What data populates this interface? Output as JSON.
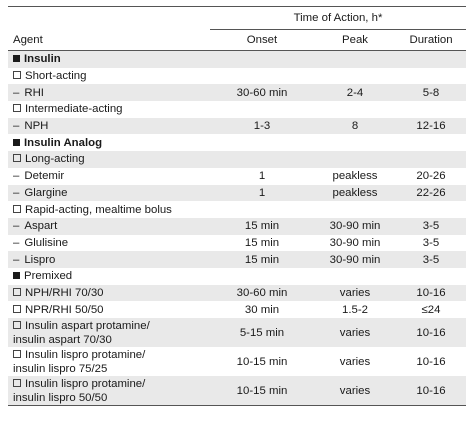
{
  "header": {
    "agent_label": "Agent",
    "time_of_action_label": "Time of Action, h*",
    "onset_label": "Onset",
    "peak_label": "Peak",
    "duration_label": "Duration"
  },
  "rows": [
    {
      "kind": "category",
      "agent": "Insulin",
      "onset": "",
      "peak": "",
      "duration": ""
    },
    {
      "kind": "subcategory",
      "agent": "Short-acting",
      "onset": "",
      "peak": "",
      "duration": ""
    },
    {
      "kind": "item",
      "agent": "RHI",
      "onset": "30-60 min",
      "peak": "2-4",
      "duration": "5-8"
    },
    {
      "kind": "subcategory",
      "agent": "Intermediate-acting",
      "onset": "",
      "peak": "",
      "duration": ""
    },
    {
      "kind": "item",
      "agent": "NPH",
      "onset": "1-3",
      "peak": "8",
      "duration": "12-16"
    },
    {
      "kind": "category",
      "agent": "Insulin Analog",
      "onset": "",
      "peak": "",
      "duration": ""
    },
    {
      "kind": "subcategory",
      "agent": "Long-acting",
      "onset": "",
      "peak": "",
      "duration": ""
    },
    {
      "kind": "item",
      "agent": "Detemir",
      "onset": "1",
      "peak": "peakless",
      "duration": "20-26"
    },
    {
      "kind": "item",
      "agent": "Glargine",
      "onset": "1",
      "peak": "peakless",
      "duration": "22-26"
    },
    {
      "kind": "subcategory",
      "agent": "Rapid-acting, mealtime bolus",
      "onset": "",
      "peak": "",
      "duration": ""
    },
    {
      "kind": "item",
      "agent": "Aspart",
      "onset": "15 min",
      "peak": "30-90 min",
      "duration": "3-5"
    },
    {
      "kind": "item",
      "agent": "Glulisine",
      "onset": "15 min",
      "peak": "30-90 min",
      "duration": "3-5"
    },
    {
      "kind": "item",
      "agent": "Lispro",
      "onset": "15 min",
      "peak": "30-90 min",
      "duration": "3-5"
    },
    {
      "kind": "premixed",
      "agent": "Premixed",
      "onset": "",
      "peak": "",
      "duration": ""
    },
    {
      "kind": "subitem",
      "agent": "NPH/RHI 70/30",
      "onset": "30-60 min",
      "peak": "varies",
      "duration": "10-16"
    },
    {
      "kind": "subitem",
      "agent": "NPR/RHI 50/50",
      "onset": "30 min",
      "peak": "1.5-2",
      "duration": "≤24"
    },
    {
      "kind": "subitem2",
      "agent": "Insulin aspart protamine/",
      "agent2": "insulin aspart 70/30",
      "onset": "5-15 min",
      "peak": "varies",
      "duration": "10-16"
    },
    {
      "kind": "subitem2",
      "agent": "Insulin lispro protamine/",
      "agent2": "insulin lispro 75/25",
      "onset": "10-15 min",
      "peak": "varies",
      "duration": "10-16"
    },
    {
      "kind": "subitem2",
      "agent": "Insulin lispro protamine/",
      "agent2": "insulin lispro 50/50",
      "onset": "10-15 min",
      "peak": "varies",
      "duration": "10-16"
    }
  ]
}
